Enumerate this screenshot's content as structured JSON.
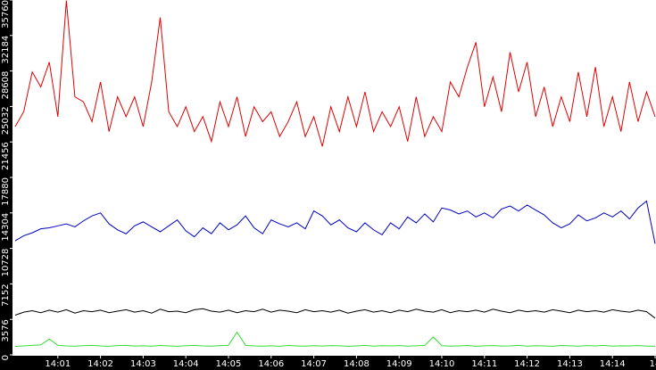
{
  "chart_data": {
    "type": "line",
    "x": [
      0,
      0.2,
      0.4,
      0.6,
      0.8,
      1,
      1.2,
      1.4,
      1.6,
      1.8,
      2,
      2.2,
      2.4,
      2.6,
      2.8,
      3,
      3.2,
      3.4,
      3.6,
      3.8,
      4,
      4.2,
      4.4,
      4.6,
      4.8,
      5,
      5.2,
      5.4,
      5.6,
      5.8,
      6,
      6.2,
      6.4,
      6.6,
      6.8,
      7,
      7.2,
      7.4,
      7.6,
      7.8,
      8,
      8.2,
      8.4,
      8.6,
      8.8,
      9,
      9.2,
      9.4,
      9.6,
      9.8,
      10,
      10.2,
      10.4,
      10.6,
      10.8,
      11,
      11.2,
      11.4,
      11.6,
      11.8,
      12,
      12.2,
      12.4,
      12.6,
      12.8,
      13,
      13.2,
      13.4,
      13.6,
      13.8,
      14,
      14.2,
      14.4,
      14.6,
      14.8,
      15
    ],
    "xlim": [
      0,
      15
    ],
    "xticks": [
      {
        "value": 1,
        "label": "14:01"
      },
      {
        "value": 2,
        "label": "14:02"
      },
      {
        "value": 3,
        "label": "14:03"
      },
      {
        "value": 4,
        "label": "14:04"
      },
      {
        "value": 5,
        "label": "14:05"
      },
      {
        "value": 6,
        "label": "14:06"
      },
      {
        "value": 7,
        "label": "14:07"
      },
      {
        "value": 8,
        "label": "14:08"
      },
      {
        "value": 9,
        "label": "14:09"
      },
      {
        "value": 10,
        "label": "14:10"
      },
      {
        "value": 11,
        "label": "14:11"
      },
      {
        "value": 12,
        "label": "14:12"
      },
      {
        "value": 13,
        "label": "14:13"
      },
      {
        "value": 14,
        "label": "14:14"
      },
      {
        "value": 15,
        "label": "14"
      }
    ],
    "ylim": [
      0,
      35760
    ],
    "yticks": [
      0,
      3576,
      7152,
      10728,
      14304,
      17880,
      21456,
      25032,
      28608,
      32184,
      35760
    ],
    "grid": false,
    "series": [
      {
        "color": "#e00000",
        "values": [
          23000,
          24500,
          28500,
          27000,
          29500,
          24000,
          35700,
          26000,
          25500,
          23500,
          27500,
          22500,
          26000,
          24000,
          26000,
          23000,
          27500,
          34000,
          24500,
          23000,
          25000,
          22500,
          24000,
          21500,
          25500,
          23000,
          26000,
          22000,
          25000,
          23500,
          24500,
          22000,
          23500,
          25500,
          22000,
          24000,
          21000,
          25000,
          22500,
          26000,
          23000,
          26500,
          22500,
          24500,
          23000,
          25000,
          21500,
          26000,
          22000,
          24000,
          22500,
          27500,
          26000,
          29000,
          31500,
          25000,
          28000,
          24500,
          30500,
          26500,
          29500,
          24000,
          27000,
          23000,
          26000,
          23500,
          28500,
          24000,
          29000,
          23000,
          26000,
          22500,
          27500,
          23500,
          26500,
          24000
        ]
      },
      {
        "color": "#0000c0",
        "values": [
          11500,
          12000,
          12300,
          12700,
          12800,
          13000,
          13200,
          12900,
          13500,
          14000,
          14300,
          13200,
          12600,
          12200,
          13000,
          13400,
          12900,
          12400,
          13000,
          13600,
          12500,
          11900,
          12800,
          12200,
          13300,
          12600,
          13100,
          14000,
          12800,
          12200,
          13600,
          13200,
          12900,
          13300,
          12700,
          14500,
          14000,
          13100,
          13600,
          12800,
          12400,
          13300,
          12600,
          12100,
          13300,
          12700,
          13900,
          13300,
          14200,
          13400,
          14800,
          14600,
          14200,
          14500,
          13900,
          14300,
          13800,
          14700,
          15000,
          14500,
          15100,
          14600,
          14100,
          13300,
          12800,
          13200,
          14100,
          13500,
          13800,
          14300,
          13900,
          14500,
          13700,
          14800,
          15500,
          11200
        ]
      },
      {
        "color": "#000000",
        "values": [
          4000,
          4300,
          4450,
          4250,
          4500,
          4300,
          4550,
          4200,
          4450,
          4350,
          4500,
          4250,
          4400,
          4550,
          4300,
          4450,
          4200,
          4600,
          4350,
          4400,
          4250,
          4550,
          4650,
          4400,
          4300,
          4500,
          4250,
          4450,
          4350,
          4600,
          4300,
          4500,
          4400,
          4250,
          4550,
          4350,
          4450,
          4300,
          4500,
          4200,
          4400,
          4550,
          4300,
          4450,
          4250,
          4500,
          4350,
          4600,
          4400,
          4300,
          4550,
          4250,
          4450,
          4350,
          4500,
          4300,
          4600,
          4400,
          4250,
          4500,
          4350,
          4450,
          4300,
          4550,
          4400,
          4250,
          4500,
          4350,
          4450,
          4300,
          4550,
          4400,
          4300,
          4500,
          4350,
          3700
        ]
      },
      {
        "color": "#33dd33",
        "values": [
          850,
          900,
          950,
          1000,
          1600,
          950,
          900,
          880,
          920,
          960,
          900,
          870,
          930,
          950,
          890,
          910,
          880,
          940,
          900,
          870,
          920,
          950,
          900,
          880,
          930,
          960,
          2300,
          950,
          900,
          880,
          910,
          870,
          940,
          900,
          880,
          920,
          890,
          930,
          910,
          870,
          900,
          950,
          880,
          920,
          900,
          930,
          880,
          910,
          950,
          1800,
          920,
          880,
          900,
          940,
          870,
          910,
          930,
          890,
          900,
          950,
          880,
          920,
          900,
          870,
          940,
          910,
          880,
          930,
          900,
          950,
          880,
          910,
          900,
          930,
          890,
          870
        ]
      }
    ]
  }
}
